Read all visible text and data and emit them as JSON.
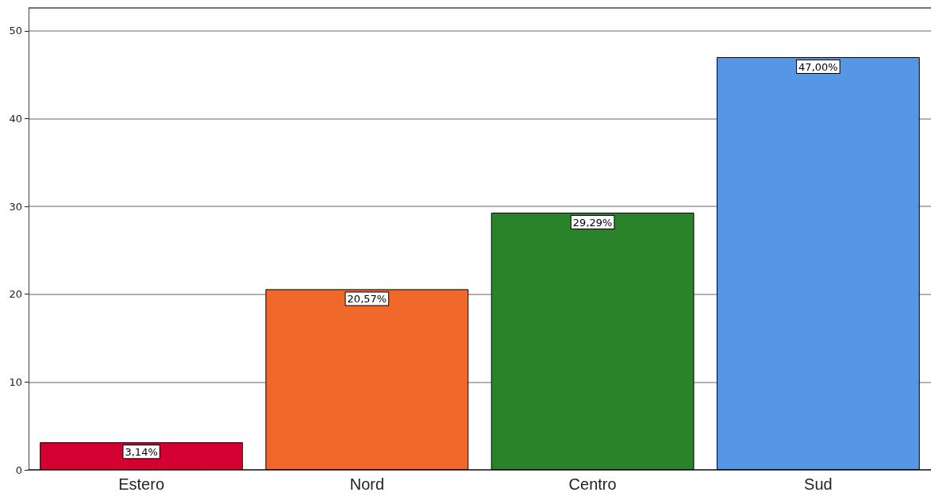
{
  "chart_data": {
    "type": "bar",
    "categories": [
      "Estero",
      "Nord",
      "Centro",
      "Sud"
    ],
    "values": [
      3.14,
      20.57,
      29.29,
      47.0
    ],
    "value_labels": [
      "3,14%",
      "20,57%",
      "29,29%",
      "47,00%"
    ],
    "colors": [
      "#d50032",
      "#f0692a",
      "#2a832a",
      "#5597e5"
    ],
    "ylim": [
      0,
      52.6
    ],
    "yticks": [
      0,
      10,
      20,
      30,
      40,
      50
    ],
    "grid": "y"
  }
}
